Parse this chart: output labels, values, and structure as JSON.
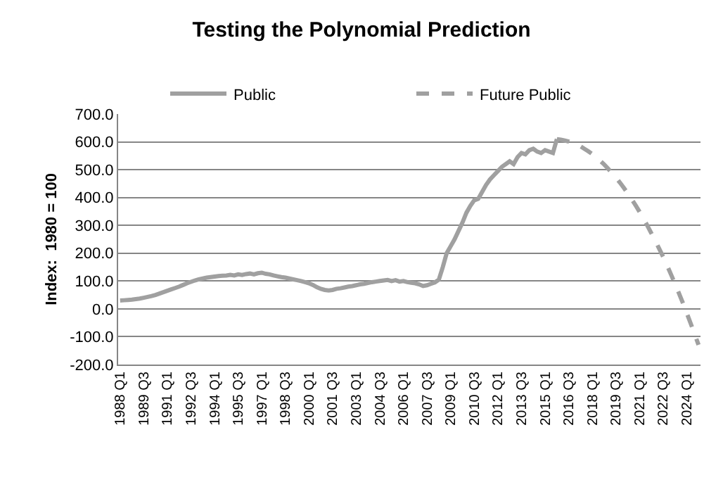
{
  "chart_data": {
    "type": "line",
    "title": "Testing the Polynomial Prediction",
    "ylabel": "Index:  1980 = 100",
    "categories": [
      "1988 Q1",
      null,
      null,
      null,
      null,
      null,
      "1989 Q3",
      null,
      null,
      null,
      null,
      null,
      "1991 Q1",
      null,
      null,
      null,
      null,
      null,
      "1992 Q3",
      null,
      null,
      null,
      null,
      null,
      "1994 Q1",
      null,
      null,
      null,
      null,
      null,
      "1995 Q3",
      null,
      null,
      null,
      null,
      null,
      "1997 Q1",
      null,
      null,
      null,
      null,
      null,
      "1998 Q3",
      null,
      null,
      null,
      null,
      null,
      "2000 Q1",
      null,
      null,
      null,
      null,
      null,
      "2001 Q3",
      null,
      null,
      null,
      null,
      null,
      "2003 Q1",
      null,
      null,
      null,
      null,
      null,
      "2004 Q3",
      null,
      null,
      null,
      null,
      null,
      "2006 Q1",
      null,
      null,
      null,
      null,
      null,
      "2007 Q3",
      null,
      null,
      null,
      null,
      null,
      "2009 Q1",
      null,
      null,
      null,
      null,
      null,
      "2010 Q3",
      null,
      null,
      null,
      null,
      null,
      "2012 Q1",
      null,
      null,
      null,
      null,
      null,
      "2013 Q3",
      null,
      null,
      null,
      null,
      null,
      "2015 Q1",
      null,
      null,
      null,
      null,
      null,
      "2016 Q3",
      null,
      null,
      null,
      null,
      null,
      "2018 Q1",
      null,
      null,
      null,
      null,
      null,
      "2019 Q3",
      null,
      null,
      null,
      null,
      null,
      "2021 Q1",
      null,
      null,
      null,
      null,
      null,
      "2022 Q3",
      null,
      null,
      null,
      null,
      null,
      "2024 Q1",
      null,
      null,
      null
    ],
    "series": [
      {
        "name": "Public",
        "color": "#a0a0a0",
        "line_style": "solid",
        "values": [
          30,
          31,
          32,
          33,
          35,
          37,
          40,
          43,
          46,
          50,
          55,
          60,
          65,
          70,
          75,
          80,
          86,
          92,
          97,
          102,
          106,
          109,
          112,
          114,
          116,
          118,
          119,
          120,
          122,
          120,
          124,
          122,
          125,
          127,
          124,
          128,
          130,
          126,
          124,
          120,
          117,
          114,
          112,
          109,
          106,
          103,
          100,
          96,
          92,
          86,
          78,
          72,
          68,
          66,
          68,
          72,
          74,
          77,
          80,
          82,
          85,
          88,
          90,
          93,
          96,
          98,
          100,
          102,
          104,
          100,
          103,
          98,
          100,
          96,
          94,
          92,
          88,
          82,
          85,
          90,
          95,
          105,
          150,
          200,
          225,
          250,
          280,
          310,
          345,
          370,
          390,
          395,
          420,
          445,
          465,
          480,
          495,
          510,
          520,
          530,
          520,
          545,
          560,
          555,
          570,
          575,
          565,
          560,
          570,
          565,
          560,
          610,
          null,
          null,
          null,
          null,
          null,
          null,
          null,
          null,
          null,
          null,
          null,
          null,
          null,
          null,
          null,
          null,
          null,
          null,
          null,
          null,
          null,
          null,
          null,
          null,
          null,
          null,
          null,
          null,
          null,
          null,
          null,
          null,
          null,
          null,
          null,
          null
        ]
      },
      {
        "name": "Future Public",
        "color": "#a0a0a0",
        "line_style": "dashed",
        "values": [
          null,
          null,
          null,
          null,
          null,
          null,
          null,
          null,
          null,
          null,
          null,
          null,
          null,
          null,
          null,
          null,
          null,
          null,
          null,
          null,
          null,
          null,
          null,
          null,
          null,
          null,
          null,
          null,
          null,
          null,
          null,
          null,
          null,
          null,
          null,
          null,
          null,
          null,
          null,
          null,
          null,
          null,
          null,
          null,
          null,
          null,
          null,
          null,
          null,
          null,
          null,
          null,
          null,
          null,
          null,
          null,
          null,
          null,
          null,
          null,
          null,
          null,
          null,
          null,
          null,
          null,
          null,
          null,
          null,
          null,
          null,
          null,
          null,
          null,
          null,
          null,
          null,
          null,
          null,
          null,
          null,
          null,
          null,
          null,
          null,
          null,
          null,
          null,
          null,
          null,
          null,
          null,
          null,
          null,
          null,
          null,
          null,
          null,
          null,
          null,
          null,
          null,
          null,
          null,
          null,
          null,
          null,
          null,
          null,
          null,
          null,
          610,
          608,
          605,
          601,
          596,
          591,
          584,
          575,
          566,
          556,
          545,
          532,
          519,
          504,
          488,
          472,
          454,
          435,
          415,
          394,
          372,
          349,
          324,
          299,
          272,
          245,
          216,
          187,
          156,
          124,
          91,
          57,
          22,
          -15,
          -52,
          -90,
          -129
        ]
      }
    ],
    "ylim": [
      -200,
      700
    ],
    "yticks": [
      {
        "value": -200,
        "label": "-200.0"
      },
      {
        "value": -100,
        "label": "-100.0"
      },
      {
        "value": 0,
        "label": "0.0"
      },
      {
        "value": 100,
        "label": "100.0"
      },
      {
        "value": 200,
        "label": "200.0"
      },
      {
        "value": 300,
        "label": "300.0"
      },
      {
        "value": 400,
        "label": "400.0"
      },
      {
        "value": 500,
        "label": "500.0"
      },
      {
        "value": 600,
        "label": "600.0"
      },
      {
        "value": 700,
        "label": "700.0"
      }
    ],
    "grid": "y",
    "legend": "top",
    "marker": "none"
  }
}
